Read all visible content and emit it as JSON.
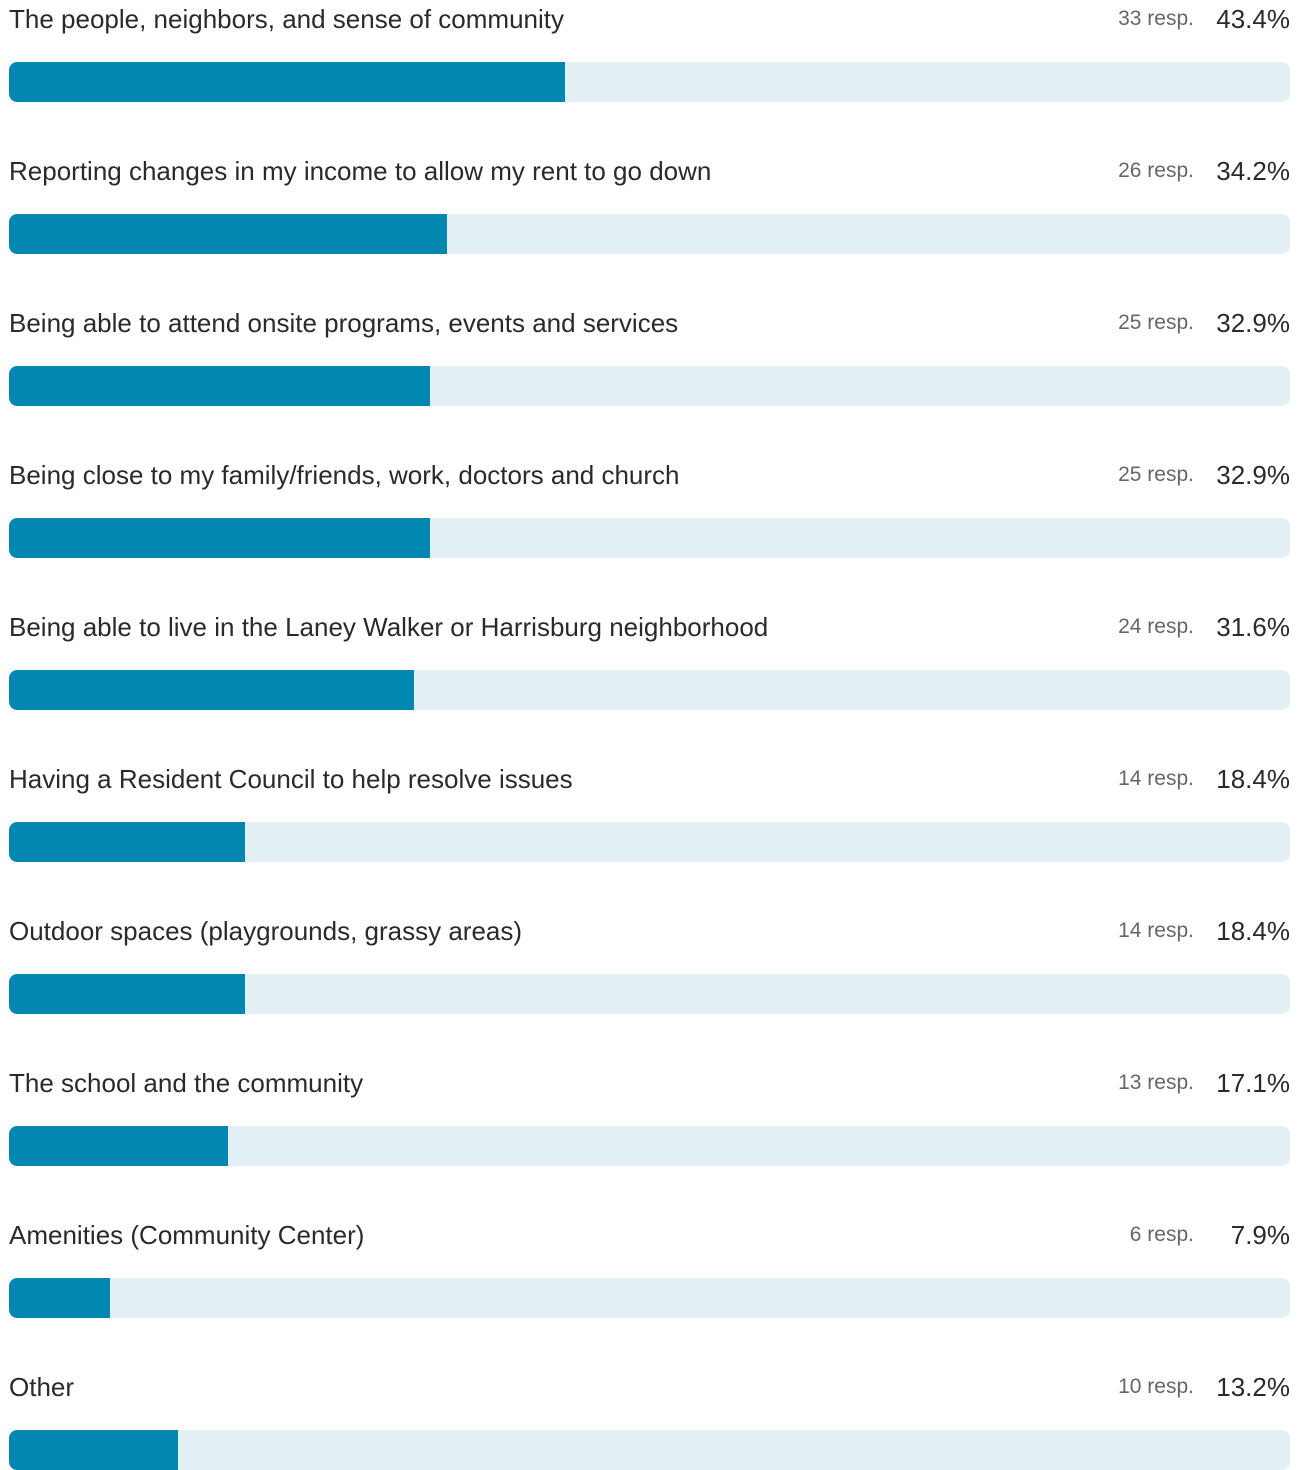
{
  "chart_data": {
    "type": "bar",
    "orientation": "horizontal",
    "categories": [
      "The people, neighbors, and sense of community",
      "Reporting changes in my income to allow my rent to go down",
      "Being able to attend onsite programs, events and services",
      "Being close to my family/friends, work, doctors and church",
      "Being able to live in the Laney Walker or Harrisburg neighborhood",
      "Having a Resident Council to help resolve issues",
      "Outdoor spaces (playgrounds, grassy areas)",
      "The school and the community",
      "Amenities (Community Center)",
      "Other"
    ],
    "counts": [
      33,
      26,
      25,
      25,
      24,
      14,
      14,
      13,
      6,
      10
    ],
    "count_labels": [
      "33 resp.",
      "26 resp.",
      "25 resp.",
      "25 resp.",
      "24 resp.",
      "14 resp.",
      "14 resp.",
      "13 resp.",
      "6 resp.",
      "10 resp."
    ],
    "values": [
      43.4,
      34.2,
      32.9,
      32.9,
      31.6,
      18.4,
      18.4,
      17.1,
      7.9,
      13.2
    ],
    "value_labels": [
      "43.4%",
      "34.2%",
      "32.9%",
      "32.9%",
      "31.6%",
      "18.4%",
      "18.4%",
      "17.1%",
      "7.9%",
      "13.2%"
    ],
    "xlim": [
      0,
      100
    ],
    "grid": false,
    "legend": "none",
    "colors": {
      "bar": "#0288b0",
      "track": "#e2f0f5"
    }
  }
}
